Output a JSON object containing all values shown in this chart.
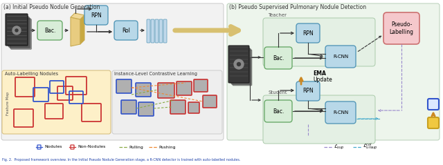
{
  "fig_width": 6.4,
  "fig_height": 2.39,
  "dpi": 100,
  "title_a": "(a) Initial Pseudo Nodule Generation",
  "title_b": "(b) Pseudo Supervised Pulmonary Nodule Detection",
  "caption": "Fig. 2.  Proposed framework overview. In the Initial Pseudo Nodule Generation stage, a R-CNN detector is trained with auto-labelled nodules.",
  "section_a_bg": "#f2f2f2",
  "section_a_border": "#c8c8c8",
  "section_b_bg": "#edf5ec",
  "section_b_border": "#b8cfb8",
  "teacher_bg": "#e4f0e4",
  "teacher_border": "#aacaaa",
  "student_bg": "#e4f0e4",
  "student_border": "#aacaaa",
  "bac_fc": "#d8edd8",
  "bac_ec": "#6aaa6a",
  "rpn_fc": "#b8d8e8",
  "rpn_ec": "#5598b8",
  "rcnn_fc": "#b8d8e8",
  "rcnn_ec": "#5598b8",
  "roi_fc": "#b8d8e8",
  "roi_ec": "#5598b8",
  "pseudo_fc": "#f5c8cc",
  "pseudo_ec": "#cc7070",
  "yellow_block": "#e8cc80",
  "yellow_block_ec": "#c8aa50",
  "feature_map_bg": "#fdf0c8",
  "feature_map_ec": "#d8c080",
  "contrastive_bg": "#eeeeee",
  "contrastive_ec": "#cccccc",
  "nodule_color": "#3355cc",
  "non_nodule_color": "#cc3333",
  "pulling_color": "#88aa44",
  "pushing_color": "#ee8833",
  "lsup_color": "#9988cc",
  "lunsup_color": "#44aacc",
  "ema_color": "#cc8822",
  "caption_color": "#2244aa"
}
